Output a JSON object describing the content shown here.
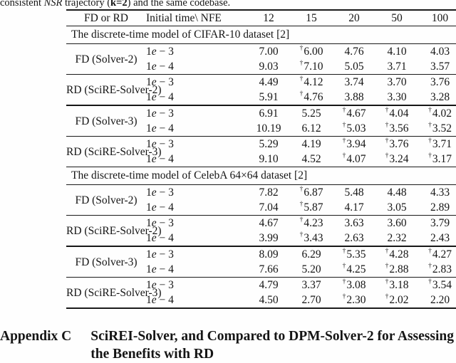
{
  "caption": {
    "part1": "consistent ",
    "nsr": "NSR",
    "part2": " trajectory (",
    "k2": "k=2",
    "part3": ") and the same codebase."
  },
  "table": {
    "header": {
      "fd_rd": "FD or RD",
      "initial_nfe": "Initial time\\ NFE",
      "nfe_values": [
        "12",
        "15",
        "20",
        "50",
        "100"
      ]
    },
    "sections": [
      {
        "title": "The discrete-time model of CIFAR-10 dataset [2]",
        "groups": [
          {
            "label": "FD (Solver-2)",
            "rows": [
              {
                "init": "1e − 3",
                "cells": [
                  {
                    "v": "7.00"
                  },
                  {
                    "v": "6.00",
                    "d": 1
                  },
                  {
                    "v": "4.76"
                  },
                  {
                    "v": "4.10"
                  },
                  {
                    "v": "4.03"
                  }
                ]
              },
              {
                "init": "1e − 4",
                "cells": [
                  {
                    "v": "9.03"
                  },
                  {
                    "v": "7.10",
                    "d": 1
                  },
                  {
                    "v": "5.05"
                  },
                  {
                    "v": "3.71"
                  },
                  {
                    "v": "3.57"
                  }
                ]
              }
            ]
          },
          {
            "label": "RD (SciRE-Solver-2)",
            "rows": [
              {
                "init": "1e − 3",
                "cells": [
                  {
                    "v": "4.49",
                    "b": 1
                  },
                  {
                    "v": "4.12",
                    "d": 1,
                    "b": 1
                  },
                  {
                    "v": "3.74",
                    "b": 1
                  },
                  {
                    "v": "3.70"
                  },
                  {
                    "v": "3.76"
                  }
                ]
              },
              {
                "init": "1e − 4",
                "cells": [
                  {
                    "v": "5.91"
                  },
                  {
                    "v": "4.76",
                    "d": 1
                  },
                  {
                    "v": "3.88"
                  },
                  {
                    "v": "3.30",
                    "b": 1
                  },
                  {
                    "v": "3.28",
                    "b": 1
                  }
                ]
              }
            ]
          },
          {
            "label": "FD (Solver-3)",
            "thick": true,
            "rows": [
              {
                "init": "1e − 3",
                "cells": [
                  {
                    "v": "6.91"
                  },
                  {
                    "v": "5.25"
                  },
                  {
                    "v": "4.67",
                    "d": 1
                  },
                  {
                    "v": "4.04",
                    "d": 1
                  },
                  {
                    "v": "4.02",
                    "d": 1
                  }
                ]
              },
              {
                "init": "1e − 4",
                "cells": [
                  {
                    "v": "10.19"
                  },
                  {
                    "v": "6.12"
                  },
                  {
                    "v": "5.03",
                    "d": 1
                  },
                  {
                    "v": "3.56",
                    "d": 1
                  },
                  {
                    "v": "3.52",
                    "d": 1
                  }
                ]
              }
            ]
          },
          {
            "label": "RD (SciRE-Solver-3)",
            "rows": [
              {
                "init": "1e − 3",
                "cells": [
                  {
                    "v": "5.29",
                    "b": 1
                  },
                  {
                    "v": "4.19",
                    "b": 1
                  },
                  {
                    "v": "3.94",
                    "d": 1,
                    "b": 1
                  },
                  {
                    "v": "3.76",
                    "d": 1
                  },
                  {
                    "v": "3.71",
                    "d": 1
                  }
                ]
              },
              {
                "init": "1e − 4",
                "cells": [
                  {
                    "v": "9.10"
                  },
                  {
                    "v": "4.52"
                  },
                  {
                    "v": "4.07",
                    "d": 1
                  },
                  {
                    "v": "3.24",
                    "d": 1,
                    "b": 1
                  },
                  {
                    "v": "3.17",
                    "d": 1,
                    "b": 1
                  }
                ]
              }
            ]
          }
        ]
      },
      {
        "title": "The discrete-time model of CelebA 64×64 dataset [2]",
        "groups": [
          {
            "label": "FD (Solver-2)",
            "rows": [
              {
                "init": "1e − 3",
                "cells": [
                  {
                    "v": "7.82"
                  },
                  {
                    "v": "6.87",
                    "d": 1
                  },
                  {
                    "v": "5.48"
                  },
                  {
                    "v": "4.48"
                  },
                  {
                    "v": "4.33"
                  }
                ]
              },
              {
                "init": "1e − 4",
                "cells": [
                  {
                    "v": "7.04"
                  },
                  {
                    "v": "5.87",
                    "d": 1
                  },
                  {
                    "v": "4.17"
                  },
                  {
                    "v": "3.05"
                  },
                  {
                    "v": "2.89"
                  }
                ]
              }
            ]
          },
          {
            "label": "RD (SciRE-Solver-2)",
            "rows": [
              {
                "init": "1e − 3",
                "cells": [
                  {
                    "v": "4.67"
                  },
                  {
                    "v": "4.23",
                    "d": 1
                  },
                  {
                    "v": "3.63"
                  },
                  {
                    "v": "3.60"
                  },
                  {
                    "v": "3.79"
                  }
                ]
              },
              {
                "init": "1e − 4",
                "cells": [
                  {
                    "v": "3.99",
                    "b": 1
                  },
                  {
                    "v": "3.43",
                    "d": 1,
                    "b": 1
                  },
                  {
                    "v": "2.63",
                    "b": 1
                  },
                  {
                    "v": "2.32",
                    "b": 1
                  },
                  {
                    "v": "2.43",
                    "b": 1
                  }
                ]
              }
            ]
          },
          {
            "label": "FD (Solver-3)",
            "thick": true,
            "rows": [
              {
                "init": "1e − 3",
                "cells": [
                  {
                    "v": "8.09"
                  },
                  {
                    "v": "6.29"
                  },
                  {
                    "v": "5.35",
                    "d": 1
                  },
                  {
                    "v": "4.28",
                    "d": 1
                  },
                  {
                    "v": "4.27",
                    "d": 1
                  }
                ]
              },
              {
                "init": "1e − 4",
                "cells": [
                  {
                    "v": "7.66"
                  },
                  {
                    "v": "5.20"
                  },
                  {
                    "v": "4.25",
                    "d": 1
                  },
                  {
                    "v": "2.88",
                    "d": 1
                  },
                  {
                    "v": "2.83",
                    "d": 1
                  }
                ]
              }
            ]
          },
          {
            "label": "RD (SciRE-Solver-3)",
            "rows": [
              {
                "init": "1e − 3",
                "cells": [
                  {
                    "v": "4.79"
                  },
                  {
                    "v": "3.37"
                  },
                  {
                    "v": "3.08",
                    "d": 1
                  },
                  {
                    "v": "3.18",
                    "d": 1
                  },
                  {
                    "v": "3.54",
                    "d": 1
                  }
                ]
              },
              {
                "init": "1e − 4",
                "cells": [
                  {
                    "v": "4.50",
                    "b": 1
                  },
                  {
                    "v": "2.70",
                    "b": 1
                  },
                  {
                    "v": "2.30",
                    "d": 1,
                    "b": 1
                  },
                  {
                    "v": "2.02",
                    "d": 1,
                    "b": 1
                  },
                  {
                    "v": "2.20",
                    "b": 1
                  }
                ]
              }
            ]
          }
        ]
      }
    ],
    "dagger_symbol": "†"
  },
  "appendix": {
    "label": "Appendix C",
    "title_line1": "SciREI-Solver, and Compared to DPM-Solver-2 for Assessing",
    "title_line2": "the Benefits with RD"
  }
}
